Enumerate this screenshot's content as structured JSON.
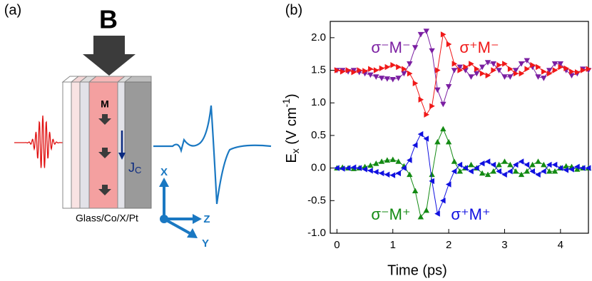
{
  "panel_a": {
    "label": "(a)",
    "field": "B",
    "magnetization": "M",
    "current": "J",
    "current_subscript": "C",
    "axes": [
      "X",
      "Z",
      "Y"
    ],
    "stack": "Glass/Co/X/Pt"
  },
  "chart_data": {
    "type": "line",
    "label": "(b)",
    "xlabel": "Time (ps)",
    "ylabel_parts": [
      "E",
      "x",
      " (V cm",
      "-1",
      ")"
    ],
    "x": [
      0,
      0.1,
      0.2,
      0.3,
      0.4,
      0.5,
      0.6,
      0.7,
      0.8,
      0.9,
      1.0,
      1.1,
      1.2,
      1.3,
      1.4,
      1.5,
      1.6,
      1.7,
      1.8,
      1.9,
      2.0,
      2.1,
      2.2,
      2.3,
      2.4,
      2.5,
      2.6,
      2.7,
      2.8,
      2.9,
      3.0,
      3.1,
      3.2,
      3.3,
      3.4,
      3.5,
      3.6,
      3.7,
      3.8,
      3.9,
      4.0,
      4.1,
      4.2,
      4.3,
      4.4,
      4.5
    ],
    "series": [
      {
        "name": "σ⁻M⁻",
        "color": "#7b1fa2",
        "marker": "triangle-down",
        "values": [
          1.5,
          1.5,
          1.48,
          1.5,
          1.47,
          1.45,
          1.43,
          1.4,
          1.38,
          1.37,
          1.36,
          1.38,
          1.45,
          1.6,
          1.85,
          2.05,
          2.1,
          1.8,
          1.2,
          0.98,
          1.25,
          1.5,
          1.55,
          1.5,
          1.4,
          1.45,
          1.55,
          1.62,
          1.6,
          1.5,
          1.4,
          1.4,
          1.5,
          1.6,
          1.65,
          1.55,
          1.4,
          1.38,
          1.5,
          1.6,
          1.6,
          1.5,
          1.42,
          1.45,
          1.52,
          1.5
        ]
      },
      {
        "name": "σ⁺M⁻",
        "color": "#f01818",
        "marker": "triangle-right",
        "values": [
          1.5,
          1.48,
          1.5,
          1.47,
          1.5,
          1.49,
          1.52,
          1.5,
          1.53,
          1.55,
          1.58,
          1.55,
          1.52,
          1.45,
          1.3,
          1.05,
          0.82,
          0.95,
          1.5,
          2.05,
          1.9,
          1.6,
          1.5,
          1.55,
          1.6,
          1.52,
          1.45,
          1.42,
          1.5,
          1.58,
          1.6,
          1.52,
          1.45,
          1.45,
          1.52,
          1.58,
          1.55,
          1.48,
          1.45,
          1.5,
          1.55,
          1.53,
          1.48,
          1.47,
          1.5,
          1.52
        ]
      },
      {
        "name": "σ⁻M⁺",
        "color": "#138a13",
        "marker": "triangle-up",
        "values": [
          0,
          0.01,
          0,
          -0.01,
          0,
          0.02,
          0.04,
          0.07,
          0.1,
          0.12,
          0.13,
          0.1,
          0.03,
          -0.1,
          -0.35,
          -0.75,
          -0.65,
          -0.1,
          0.4,
          0.6,
          0.4,
          0.1,
          -0.05,
          0,
          0.05,
          0,
          -0.08,
          -0.1,
          -0.05,
          0.05,
          0.1,
          0.05,
          -0.05,
          -0.1,
          -0.05,
          0.05,
          0.1,
          0.05,
          -0.05,
          -0.05,
          0,
          0.03,
          0.02,
          -0.02,
          0,
          0
        ]
      },
      {
        "name": "σ⁺M⁺",
        "color": "#1010e0",
        "marker": "triangle-left",
        "values": [
          0,
          -0.01,
          0,
          0.01,
          0,
          -0.02,
          -0.04,
          -0.06,
          -0.08,
          -0.1,
          -0.11,
          -0.08,
          0,
          0.12,
          0.35,
          0.52,
          0.45,
          -0.2,
          -0.7,
          -0.5,
          -0.25,
          -0.05,
          0.05,
          0,
          -0.05,
          0,
          0.07,
          0.1,
          0.05,
          -0.05,
          -0.1,
          -0.05,
          0.05,
          0.1,
          0.05,
          -0.05,
          -0.1,
          -0.05,
          0.05,
          0.05,
          0,
          -0.03,
          -0.02,
          0.02,
          0,
          0
        ]
      }
    ],
    "xlim": [
      -0.12,
      4.5
    ],
    "xticks": [
      0,
      1,
      2,
      3,
      4
    ],
    "ylim": [
      -1.0,
      2.25
    ],
    "yticks": [
      {
        "value": -1.0,
        "label": "-1.0"
      },
      {
        "value": -0.5,
        "label": "-0.5"
      },
      {
        "value": 0.0,
        "label": "0.0"
      },
      {
        "value": 0.5,
        "label": "0.5"
      },
      {
        "value": 1.0,
        "label": "1.0"
      },
      {
        "value": 1.5,
        "label": "1.5"
      },
      {
        "value": 2.0,
        "label": "2.0"
      }
    ]
  }
}
